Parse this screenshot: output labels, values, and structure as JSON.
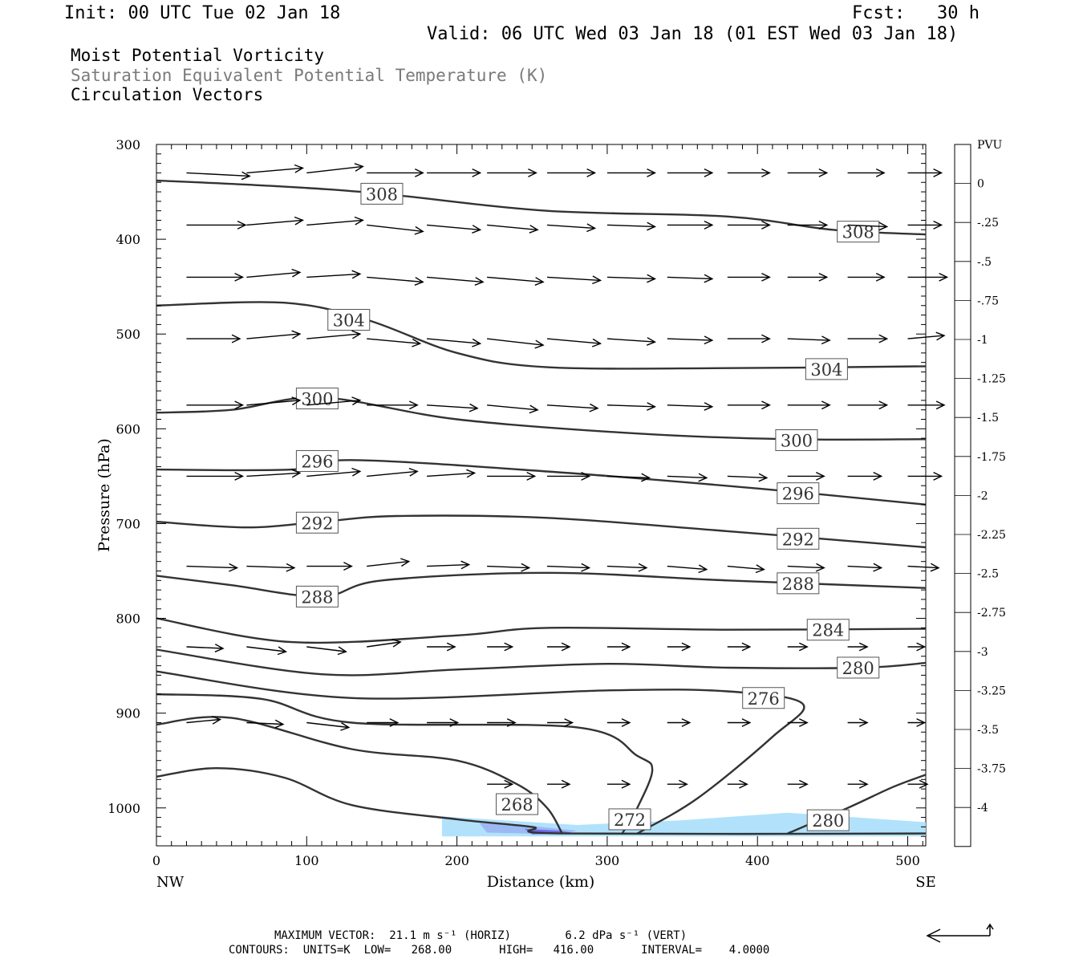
{
  "header": {
    "init": "Init: 00 UTC Tue 02 Jan 18",
    "fcst": "Fcst:   30 h",
    "valid": "Valid: 06 UTC Wed 03 Jan 18 (01 EST Wed 03 Jan 18)",
    "fields": [
      "Moist Potential Vorticity",
      "Saturation Equivalent Potential Temperature (K)",
      "Circulation Vectors"
    ]
  },
  "footer": {
    "max_vector": "MAXIMUM VECTOR:  21.1 m s⁻¹ (HORIZ)        6.2 dPa s⁻¹ (VERT)",
    "contours": "CONTOURS:  UNITS=K  LOW=   268.00       HIGH=   416.00       INTERVAL=    4.0000"
  },
  "colors": {
    "fill_light": "#aee0fb",
    "fill_mid": "#9bb6f3",
    "fill_dark": "#6a66e8",
    "contour": "#333333",
    "vector": "#000000"
  },
  "chart_data": {
    "type": "cross-section",
    "xlabel": "Distance (km)",
    "ylabel": "Pressure (hPa)",
    "x_ticks": [
      "0",
      "100",
      "200",
      "300",
      "400",
      "500"
    ],
    "x_end_labels": {
      "left": "NW",
      "right": "SE"
    },
    "y_ticks": [
      "300",
      "400",
      "500",
      "600",
      "700",
      "800",
      "900",
      "1000"
    ],
    "xlim": [
      0,
      512
    ],
    "ylim": [
      1040,
      300
    ],
    "colorbar": {
      "unit": "PVU",
      "labels": [
        "0",
        "-.25",
        "-.5",
        "-.75",
        "-1",
        "-1.25",
        "-1.5",
        "-1.75",
        "-2",
        "-2.25",
        "-2.5",
        "-2.75",
        "-3",
        "-3.25",
        "-3.5",
        "-3.75",
        "-4"
      ],
      "colors": [
        "#ffffff",
        "#ffffff",
        "#b4e2fa",
        "#b2dbf9",
        "#afd3f8",
        "#acc9f7",
        "#a8bff6",
        "#a2b3f4",
        "#9ba6f2",
        "#9397f0",
        "#8a88ee",
        "#7f77ec",
        "#7266ea",
        "#6354e8",
        "#5141e6",
        "#3d2de5",
        "#2818e3",
        "#0f00e0"
      ]
    },
    "contours": [
      {
        "label": "308",
        "points": [
          [
            0,
            338
          ],
          [
            80,
            344
          ],
          [
            150,
            352
          ],
          [
            260,
            370
          ],
          [
            380,
            376
          ],
          [
            450,
            390
          ],
          [
            512,
            395
          ]
        ],
        "labels_at": [
          [
            150,
            352
          ],
          [
            467,
            392
          ]
        ]
      },
      {
        "label": "304",
        "points": [
          [
            0,
            470
          ],
          [
            85,
            467
          ],
          [
            140,
            485
          ],
          [
            200,
            520
          ],
          [
            260,
            535
          ],
          [
            380,
            536
          ],
          [
            512,
            534
          ]
        ],
        "labels_at": [
          [
            128,
            485
          ],
          [
            446,
            537
          ]
        ]
      },
      {
        "label": "300",
        "points": [
          [
            0,
            583
          ],
          [
            50,
            580
          ],
          [
            110,
            567
          ],
          [
            200,
            590
          ],
          [
            320,
            605
          ],
          [
            420,
            611
          ],
          [
            512,
            611
          ]
        ],
        "labels_at": [
          [
            107,
            568
          ],
          [
            426,
            612
          ]
        ]
      },
      {
        "label": "296",
        "points": [
          [
            0,
            643
          ],
          [
            90,
            643
          ],
          [
            130,
            633
          ],
          [
            260,
            645
          ],
          [
            400,
            663
          ],
          [
            512,
            680
          ]
        ],
        "labels_at": [
          [
            107,
            634
          ],
          [
            427,
            668
          ]
        ]
      },
      {
        "label": "292",
        "points": [
          [
            0,
            698
          ],
          [
            60,
            704
          ],
          [
            110,
            698
          ],
          [
            160,
            692
          ],
          [
            260,
            694
          ],
          [
            380,
            708
          ],
          [
            512,
            725
          ]
        ],
        "labels_at": [
          [
            107,
            699
          ],
          [
            427,
            716
          ]
        ]
      },
      {
        "label": "288",
        "points": [
          [
            0,
            755
          ],
          [
            50,
            765
          ],
          [
            110,
            777
          ],
          [
            150,
            760
          ],
          [
            260,
            752
          ],
          [
            380,
            760
          ],
          [
            512,
            768
          ]
        ],
        "labels_at": [
          [
            107,
            777
          ],
          [
            427,
            763
          ]
        ]
      },
      {
        "label": "284",
        "points": [
          [
            0,
            800
          ],
          [
            90,
            825
          ],
          [
            200,
            818
          ],
          [
            260,
            810
          ],
          [
            380,
            812
          ],
          [
            512,
            811
          ]
        ],
        "labels_at": [
          [
            447,
            812
          ]
        ]
      },
      {
        "label": "280",
        "points": [
          [
            0,
            833
          ],
          [
            110,
            859
          ],
          [
            200,
            854
          ],
          [
            300,
            848
          ],
          [
            380,
            852
          ],
          [
            470,
            852
          ],
          [
            512,
            847
          ]
        ],
        "labels_at": [
          [
            467,
            852
          ]
        ]
      },
      {
        "label": "276",
        "points": [
          [
            0,
            856
          ],
          [
            130,
            884
          ],
          [
            300,
            876
          ],
          [
            380,
            877
          ],
          [
            430,
            890
          ],
          [
            410,
            925
          ],
          [
            360,
            990
          ],
          [
            320,
            1027
          ]
        ],
        "labels_at": [
          [
            404,
            884
          ]
        ]
      },
      {
        "label": "272",
        "points": [
          [
            0,
            880
          ],
          [
            70,
            885
          ],
          [
            130,
            910
          ],
          [
            280,
            915
          ],
          [
            320,
            945
          ],
          [
            330,
            960
          ],
          [
            320,
            1000
          ],
          [
            310,
            1027
          ]
        ],
        "labels_at": [
          [
            315,
            1012
          ]
        ]
      },
      {
        "label": "268",
        "points": [
          [
            0,
            912
          ],
          [
            50,
            905
          ],
          [
            130,
            938
          ],
          [
            200,
            950
          ],
          [
            240,
            975
          ],
          [
            260,
            1000
          ],
          [
            270,
            1027
          ]
        ],
        "labels_at": [
          [
            240,
            996
          ]
        ]
      },
      {
        "label": "280",
        "points": [
          [
            420,
            1027
          ],
          [
            460,
            1000
          ],
          [
            490,
            978
          ],
          [
            512,
            965
          ]
        ],
        "labels_at": [
          [
            447,
            1013
          ]
        ]
      },
      {
        "label": "",
        "points": [
          [
            0,
            967
          ],
          [
            40,
            958
          ],
          [
            85,
            968
          ],
          [
            130,
            997
          ],
          [
            200,
            1012
          ],
          [
            250,
            1020
          ],
          [
            270,
            1027
          ],
          [
            512,
            1027
          ]
        ],
        "labels_at": []
      }
    ],
    "pv_fill": [
      {
        "value": -0.5,
        "points": [
          [
            190,
            1009
          ],
          [
            280,
            1018
          ],
          [
            350,
            1013
          ],
          [
            420,
            1005
          ],
          [
            512,
            1015
          ],
          [
            512,
            1030
          ],
          [
            190,
            1030
          ]
        ]
      },
      {
        "value": -1.5,
        "points": [
          [
            215,
            1016
          ],
          [
            250,
            1019
          ],
          [
            280,
            1024
          ],
          [
            270,
            1028
          ],
          [
            220,
            1026
          ]
        ]
      },
      {
        "value": -2.5,
        "points": [
          [
            245,
            1022
          ],
          [
            268,
            1024
          ],
          [
            280,
            1027
          ],
          [
            250,
            1028
          ]
        ]
      }
    ],
    "vector_rows": [
      {
        "p": 330,
        "x": [
          20,
          60,
          100,
          140,
          180,
          220,
          260,
          300,
          340,
          380,
          420,
          460,
          500
        ],
        "u": [
          45,
          40,
          40,
          40,
          38,
          35,
          34,
          34,
          32,
          30,
          28,
          26,
          24
        ],
        "w": [
          -2,
          3,
          4,
          0,
          0,
          0,
          0,
          0,
          0,
          0,
          0,
          0,
          0
        ]
      },
      {
        "p": 385,
        "x": [
          20,
          60,
          100,
          140,
          180,
          220,
          260,
          300,
          340,
          380,
          420,
          460,
          500
        ],
        "u": [
          42,
          40,
          40,
          40,
          38,
          36,
          34,
          34,
          32,
          30,
          28,
          28,
          24
        ],
        "w": [
          0,
          3,
          3,
          -4,
          -3,
          -3,
          -2,
          -1,
          0,
          0,
          0,
          -1,
          0
        ]
      },
      {
        "p": 440,
        "x": [
          20,
          60,
          100,
          140,
          180,
          220,
          260,
          300,
          340,
          380,
          420,
          460,
          500
        ],
        "u": [
          40,
          38,
          38,
          40,
          40,
          40,
          38,
          34,
          32,
          30,
          28,
          26,
          28
        ],
        "w": [
          0,
          3,
          2,
          -3,
          -3,
          -3,
          -2,
          -1,
          -1,
          0,
          0,
          0,
          0
        ]
      },
      {
        "p": 505,
        "x": [
          20,
          60,
          100,
          140,
          180,
          220,
          260,
          300,
          340,
          380,
          420,
          460,
          500
        ],
        "u": [
          38,
          38,
          38,
          38,
          38,
          40,
          38,
          34,
          32,
          30,
          30,
          28,
          26
        ],
        "w": [
          0,
          3,
          3,
          -3,
          -3,
          -4,
          -3,
          -2,
          -1,
          0,
          -1,
          0,
          2
        ]
      },
      {
        "p": 575,
        "x": [
          20,
          60,
          100,
          140,
          180,
          220,
          260,
          300,
          340,
          380,
          420,
          460,
          500
        ],
        "u": [
          40,
          38,
          38,
          36,
          36,
          36,
          36,
          34,
          32,
          30,
          30,
          28,
          26
        ],
        "w": [
          0,
          3,
          3,
          0,
          -2,
          -3,
          -2,
          -1,
          -1,
          0,
          0,
          0,
          0
        ]
      },
      {
        "p": 650,
        "x": [
          20,
          60,
          100,
          140,
          180,
          220,
          260,
          300,
          340,
          380,
          420,
          460,
          500
        ],
        "u": [
          40,
          38,
          38,
          36,
          34,
          34,
          30,
          30,
          28,
          28,
          26,
          24,
          24
        ],
        "w": [
          0,
          2,
          3,
          3,
          2,
          0,
          0,
          -1,
          -1,
          -1,
          0,
          0,
          0
        ]
      },
      {
        "p": 745,
        "x": [
          20,
          60,
          100,
          140,
          180,
          220,
          260,
          300,
          340,
          380,
          420,
          460,
          500
        ],
        "u": [
          36,
          34,
          32,
          30,
          30,
          30,
          30,
          28,
          28,
          26,
          26,
          24,
          22
        ],
        "w": [
          -1,
          -1,
          0,
          3,
          1,
          -1,
          -1,
          -1,
          -2,
          -2,
          -1,
          -1,
          -1
        ]
      },
      {
        "p": 830,
        "x": [
          20,
          60,
          100,
          140,
          180,
          220,
          260,
          300,
          340,
          380,
          420,
          460,
          500
        ],
        "u": [
          26,
          28,
          28,
          24,
          20,
          18,
          16,
          16,
          16,
          16,
          14,
          14,
          12
        ],
        "w": [
          -1,
          -3,
          -3,
          3,
          0,
          0,
          0,
          0,
          0,
          0,
          0,
          0,
          0
        ]
      },
      {
        "p": 910,
        "x": [
          20,
          60,
          100,
          140,
          180,
          220,
          260,
          300,
          340,
          380,
          420,
          460,
          500
        ],
        "u": [
          24,
          26,
          30,
          22,
          22,
          20,
          18,
          16,
          16,
          16,
          14,
          14,
          12
        ],
        "w": [
          2,
          -1,
          -3,
          0,
          0,
          0,
          0,
          0,
          0,
          0,
          0,
          0,
          0
        ]
      },
      {
        "p": 975,
        "x": [
          20,
          60,
          100,
          140,
          180,
          220,
          260,
          300,
          340,
          380,
          420,
          460,
          500
        ],
        "u": [
          0,
          0,
          0,
          0,
          0,
          18,
          16,
          16,
          14,
          14,
          14,
          14,
          14
        ],
        "w": [
          0,
          0,
          0,
          0,
          0,
          0,
          0,
          0,
          0,
          0,
          0,
          0,
          0
        ]
      }
    ]
  }
}
